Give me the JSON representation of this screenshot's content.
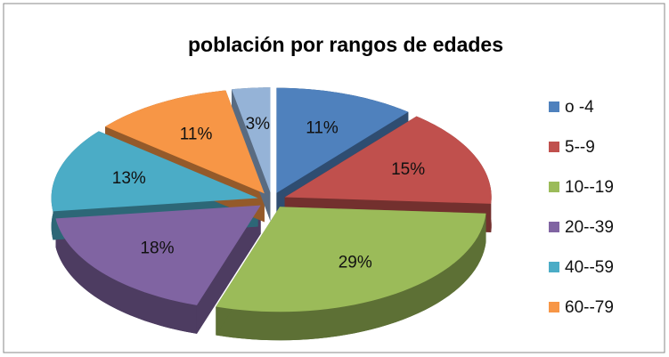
{
  "chart_data": {
    "type": "pie",
    "title": "población por rangos de edades",
    "categories": [
      "o -4",
      "5--9",
      "10--19",
      "20--39",
      "40--59",
      "60--79",
      null
    ],
    "values": [
      11,
      15,
      29,
      18,
      13,
      11,
      3
    ],
    "value_labels": [
      "11%",
      "15%",
      "29%",
      "18%",
      "13%",
      "11%",
      "3%"
    ],
    "colors": [
      "#4f81bd",
      "#c0504d",
      "#9bbb59",
      "#8064a2",
      "#4bacc6",
      "#f79646",
      "#95b3d7"
    ],
    "legend": "right"
  }
}
